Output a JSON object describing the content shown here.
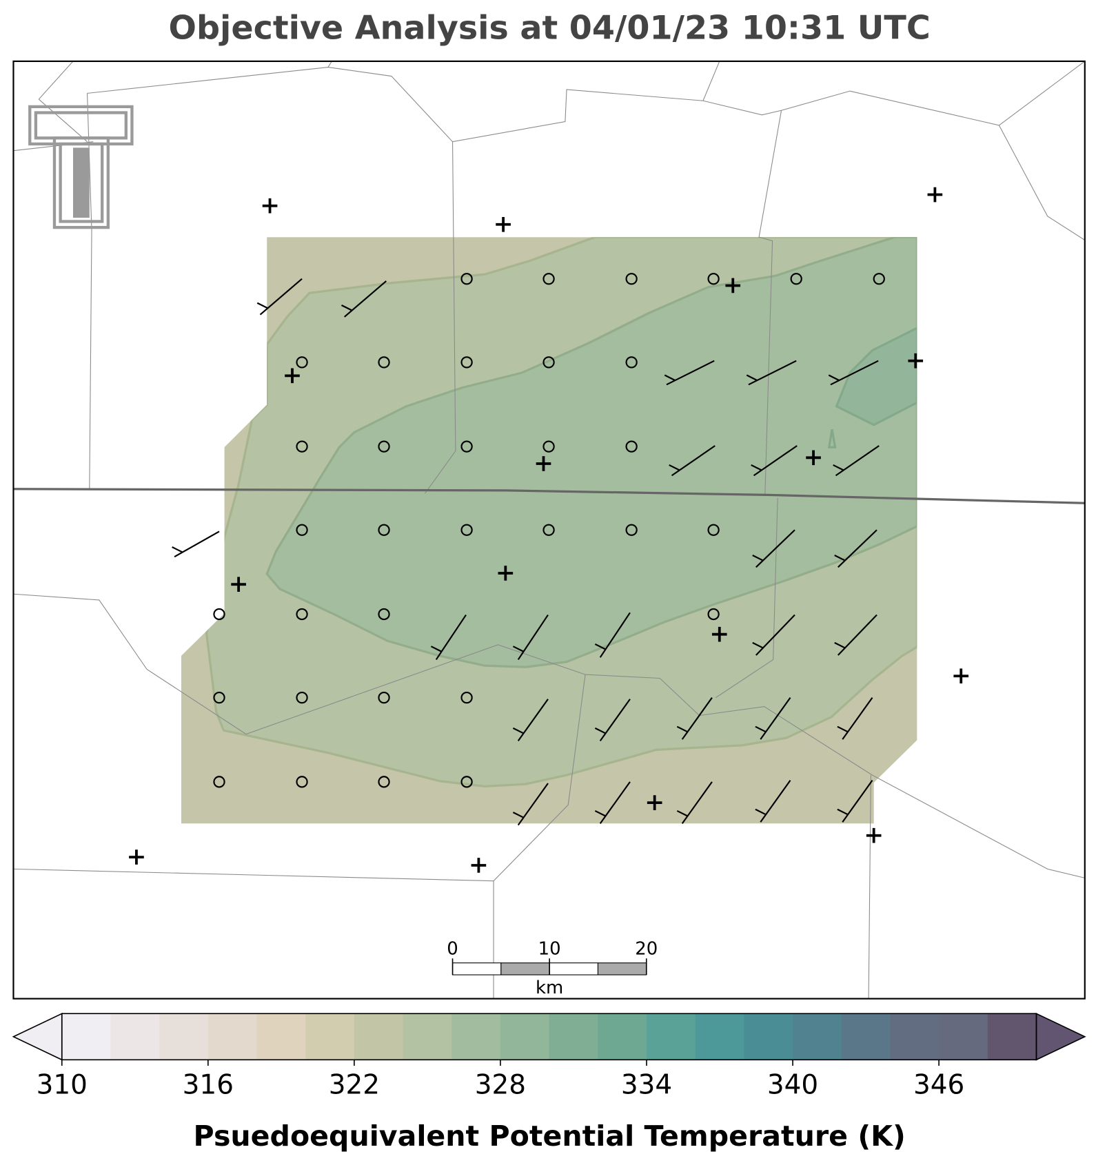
{
  "title": "Objective Analysis at 04/01/23 10:31 UTC",
  "scale_bar": {
    "ticks": [
      0,
      10,
      20
    ],
    "unit": "km"
  },
  "colorbar": {
    "label": "Psuedoequivalent Potential Temperature (K)",
    "range": [
      310,
      350
    ],
    "ticks": [
      310,
      316,
      322,
      328,
      334,
      340,
      346
    ],
    "extend": "both",
    "colors": [
      "#f0eef2",
      "#ece7e6",
      "#e7e0da",
      "#e3d9cc",
      "#e0d3bd",
      "#d3cdb0",
      "#c2c6a6",
      "#b3c2a3",
      "#a2bc9f",
      "#91b69a",
      "#80ae95",
      "#6ea893",
      "#5aa297",
      "#4d9898",
      "#4a8d95",
      "#50838f",
      "#5a778a",
      "#626d82",
      "#666a7e",
      "#62566f"
    ],
    "under_color": "#f0eef3",
    "over_color": "#615571"
  }
}
